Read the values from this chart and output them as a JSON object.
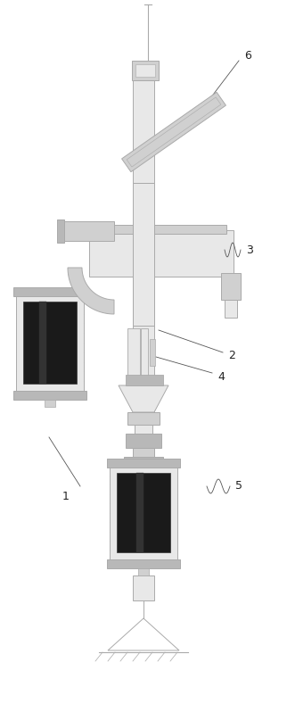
{
  "fig_width": 3.22,
  "fig_height": 7.98,
  "dpi": 100,
  "bg_color": "#ffffff",
  "lc": "#aaaaaa",
  "dc": "#222222",
  "fc_light": "#e8e8e8",
  "fc_mid": "#d0d0d0",
  "fc_dark": "#b8b8b8",
  "fc_black": "#1a1a1a"
}
